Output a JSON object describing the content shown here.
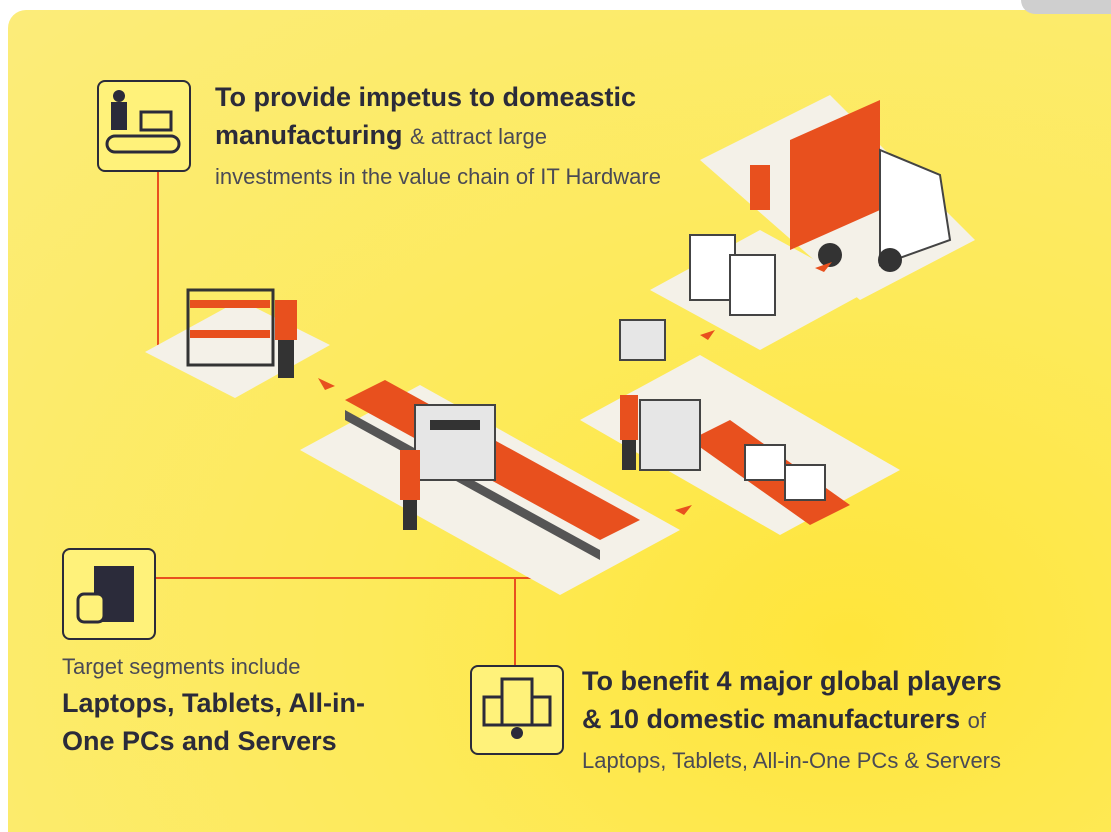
{
  "objective": {
    "bold": "To provide impetus to domeastic manufacturing",
    "rest": "& attract large investments in the value chain of IT Hardware"
  },
  "segments": {
    "intro": "Target segments include",
    "bold": "Laptops, Tablets, All-in-One PCs and Servers"
  },
  "benefit": {
    "bold": "To benefit 4 major global players & 10 domestic manufacturers",
    "rest": "of Laptops, Tablets, All-in-One PCs & Servers"
  }
}
